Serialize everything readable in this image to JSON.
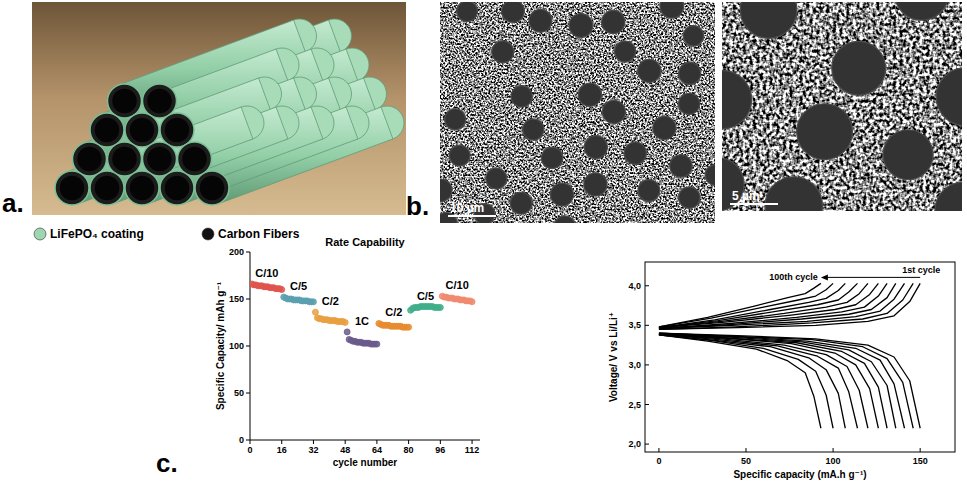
{
  "panel_labels": [
    "a.",
    "b.",
    "c."
  ],
  "illustration": {
    "legend": [
      {
        "label": "LiFePO₄ coating",
        "color": "#9ed6b0"
      },
      {
        "label": "Carbon Fibers",
        "color": "#111111"
      }
    ]
  },
  "micrographs": [
    {
      "scale_bar": "10 µm"
    },
    {
      "scale_bar": "5 µm"
    }
  ],
  "chart_data": [
    {
      "type": "scatter",
      "title": "Rate Capability",
      "xlabel": "cycle number",
      "ylabel": "Specific Capacity/ mAh g⁻¹",
      "xlim": [
        0,
        116
      ],
      "ylim": [
        0,
        200
      ],
      "xticks": [
        0,
        16,
        32,
        48,
        64,
        80,
        96,
        112
      ],
      "yticks": [
        0,
        50,
        100,
        150,
        200
      ],
      "series": [
        {
          "name": "C/10",
          "color": "#e0544c",
          "marker": "circle",
          "x": [
            1,
            2,
            3,
            4,
            5,
            6,
            7,
            8,
            9,
            10,
            11,
            12,
            13,
            14,
            15,
            16
          ],
          "values": [
            166,
            165,
            165,
            164,
            164,
            164,
            163,
            163,
            163,
            162,
            162,
            162,
            161,
            161,
            161,
            160
          ]
        },
        {
          "name": "C/5",
          "color": "#5a9fb0",
          "marker": "circle",
          "x": [
            17,
            18,
            19,
            20,
            21,
            22,
            23,
            24,
            25,
            26,
            27,
            28,
            29,
            30,
            31,
            32
          ],
          "values": [
            152,
            151,
            150,
            150,
            150,
            149,
            149,
            149,
            149,
            148,
            148,
            148,
            148,
            147,
            147,
            147
          ]
        },
        {
          "name": "C/2",
          "color": "#e8a040",
          "marker": "circle",
          "x": [
            33,
            34,
            35,
            36,
            37,
            38,
            39,
            40,
            41,
            42,
            43,
            44,
            45,
            46,
            47,
            48
          ],
          "values": [
            136,
            130,
            129,
            129,
            128,
            128,
            128,
            127,
            127,
            127,
            127,
            126,
            126,
            126,
            126,
            125
          ]
        },
        {
          "name": "1C",
          "color": "#6a5a8c",
          "marker": "circle",
          "x": [
            49,
            50,
            51,
            52,
            53,
            54,
            55,
            56,
            57,
            58,
            59,
            60,
            61,
            62,
            63,
            64
          ],
          "values": [
            115,
            107,
            106,
            105,
            105,
            104,
            104,
            104,
            103,
            103,
            103,
            103,
            102,
            102,
            102,
            102
          ]
        },
        {
          "name": "C/2",
          "color": "#e88b30",
          "marker": "circle",
          "x": [
            65,
            66,
            67,
            68,
            69,
            70,
            71,
            72,
            73,
            74,
            75,
            76,
            77,
            78,
            79,
            80
          ],
          "values": [
            124,
            123,
            122,
            122,
            122,
            122,
            121,
            121,
            121,
            121,
            121,
            121,
            120,
            120,
            120,
            120
          ]
        },
        {
          "name": "C/5",
          "color": "#3fae8a",
          "marker": "circle",
          "x": [
            81,
            82,
            83,
            84,
            85,
            86,
            87,
            88,
            89,
            90,
            91,
            92,
            93,
            94,
            95,
            96
          ],
          "values": [
            138,
            140,
            141,
            141,
            141,
            142,
            142,
            142,
            142,
            142,
            142,
            142,
            141,
            141,
            141,
            141
          ]
        },
        {
          "name": "C/10",
          "color": "#f08a70",
          "marker": "circle",
          "x": [
            97,
            98,
            99,
            100,
            101,
            102,
            103,
            104,
            105,
            106,
            107,
            108,
            109,
            110,
            111,
            112
          ],
          "values": [
            153,
            152,
            152,
            151,
            151,
            151,
            150,
            150,
            150,
            149,
            149,
            149,
            148,
            148,
            148,
            147
          ]
        }
      ]
    },
    {
      "type": "line",
      "xlabel": "Specific capacity (mA.h g⁻¹)",
      "ylabel": "Voltage/ V vs Li/Li⁺",
      "xlim": [
        -8,
        170
      ],
      "ylim": [
        1.9,
        4.3
      ],
      "xticks": [
        0,
        50,
        100,
        150
      ],
      "yticks": [
        {
          "value": 2.0,
          "label": "2,0"
        },
        {
          "value": 2.5,
          "label": "2,5"
        },
        {
          "value": 3.0,
          "label": "3,0"
        },
        {
          "value": 3.5,
          "label": "3,5"
        },
        {
          "value": 4.0,
          "label": "4,0"
        }
      ],
      "annotations": [
        {
          "text": "100th cycle"
        },
        {
          "text": "1st cycle"
        }
      ],
      "series": [
        {
          "color": "#000000",
          "x": [
            0,
            45,
            90,
            120,
            135,
            144,
            150
          ],
          "values": [
            3.45,
            3.47,
            3.5,
            3.55,
            3.62,
            3.8,
            4.03
          ]
        },
        {
          "color": "#000000",
          "x": [
            0,
            45,
            90,
            120,
            135,
            144,
            150
          ],
          "values": [
            3.4,
            3.37,
            3.33,
            3.25,
            3.1,
            2.8,
            2.2
          ]
        },
        {
          "color": "#000000",
          "x": [
            0,
            44,
            88,
            117,
            131,
            140,
            146
          ],
          "values": [
            3.45,
            3.48,
            3.53,
            3.58,
            3.65,
            3.82,
            4.03
          ]
        },
        {
          "color": "#000000",
          "x": [
            0,
            44,
            88,
            117,
            131,
            140,
            146
          ],
          "values": [
            3.4,
            3.36,
            3.32,
            3.23,
            3.08,
            2.78,
            2.2
          ]
        },
        {
          "color": "#000000",
          "x": [
            0,
            42,
            85,
            113,
            127,
            135,
            141
          ],
          "values": [
            3.46,
            3.5,
            3.55,
            3.61,
            3.68,
            3.83,
            4.03
          ]
        },
        {
          "color": "#000000",
          "x": [
            0,
            42,
            85,
            113,
            127,
            135,
            141
          ],
          "values": [
            3.4,
            3.36,
            3.3,
            3.21,
            3.06,
            2.76,
            2.2
          ]
        },
        {
          "color": "#000000",
          "x": [
            0,
            41,
            82,
            109,
            122,
            131,
            136
          ],
          "values": [
            3.46,
            3.51,
            3.58,
            3.64,
            3.7,
            3.85,
            4.03
          ]
        },
        {
          "color": "#000000",
          "x": [
            0,
            41,
            82,
            109,
            122,
            131,
            136
          ],
          "values": [
            3.39,
            3.35,
            3.29,
            3.19,
            3.04,
            2.74,
            2.2
          ]
        },
        {
          "color": "#000000",
          "x": [
            0,
            39,
            79,
            105,
            118,
            126,
            131
          ],
          "values": [
            3.46,
            3.52,
            3.6,
            3.67,
            3.73,
            3.87,
            4.03
          ]
        },
        {
          "color": "#000000",
          "x": [
            0,
            39,
            79,
            105,
            118,
            126,
            131
          ],
          "values": [
            3.39,
            3.34,
            3.28,
            3.17,
            3.02,
            2.72,
            2.2
          ]
        },
        {
          "color": "#000000",
          "x": [
            0,
            38,
            76,
            101,
            113,
            121,
            126
          ],
          "values": [
            3.47,
            3.54,
            3.63,
            3.7,
            3.76,
            3.89,
            4.03
          ]
        },
        {
          "color": "#000000",
          "x": [
            0,
            38,
            76,
            101,
            113,
            121,
            126
          ],
          "values": [
            3.39,
            3.34,
            3.27,
            3.15,
            3.0,
            2.7,
            2.2
          ]
        },
        {
          "color": "#000000",
          "x": [
            0,
            36,
            72,
            96,
            108,
            115,
            120
          ],
          "values": [
            3.47,
            3.55,
            3.65,
            3.73,
            3.79,
            3.9,
            4.03
          ]
        },
        {
          "color": "#000000",
          "x": [
            0,
            36,
            72,
            96,
            108,
            115,
            120
          ],
          "values": [
            3.39,
            3.33,
            3.25,
            3.13,
            2.98,
            2.68,
            2.2
          ]
        },
        {
          "color": "#000000",
          "x": [
            0,
            34,
            68,
            91,
            103,
            109,
            114
          ],
          "values": [
            3.47,
            3.56,
            3.68,
            3.76,
            3.82,
            3.92,
            4.03
          ]
        },
        {
          "color": "#000000",
          "x": [
            0,
            34,
            68,
            91,
            103,
            109,
            114
          ],
          "values": [
            3.39,
            3.32,
            3.24,
            3.11,
            2.96,
            2.66,
            2.2
          ]
        },
        {
          "color": "#000000",
          "x": [
            0,
            32,
            64,
            86,
            96,
            103,
            107
          ],
          "values": [
            3.47,
            3.57,
            3.7,
            3.79,
            3.84,
            3.94,
            4.03
          ]
        },
        {
          "color": "#000000",
          "x": [
            0,
            32,
            64,
            86,
            96,
            103,
            107
          ],
          "values": [
            3.38,
            3.31,
            3.23,
            3.09,
            2.94,
            2.64,
            2.2
          ]
        },
        {
          "color": "#000000",
          "x": [
            0,
            30,
            60,
            80,
            90,
            96,
            100
          ],
          "values": [
            3.48,
            3.59,
            3.73,
            3.82,
            3.87,
            3.95,
            4.03
          ]
        },
        {
          "color": "#000000",
          "x": [
            0,
            30,
            60,
            80,
            90,
            96,
            100
          ],
          "values": [
            3.38,
            3.31,
            3.21,
            3.07,
            2.92,
            2.62,
            2.2
          ]
        },
        {
          "color": "#000000",
          "x": [
            0,
            28,
            56,
            74,
            84,
            89,
            93
          ],
          "values": [
            3.48,
            3.6,
            3.75,
            3.85,
            3.9,
            3.97,
            4.03
          ]
        },
        {
          "color": "#000000",
          "x": [
            0,
            28,
            56,
            74,
            84,
            89,
            93
          ],
          "values": [
            3.38,
            3.3,
            3.2,
            3.05,
            2.9,
            2.6,
            2.2
          ]
        }
      ]
    }
  ]
}
